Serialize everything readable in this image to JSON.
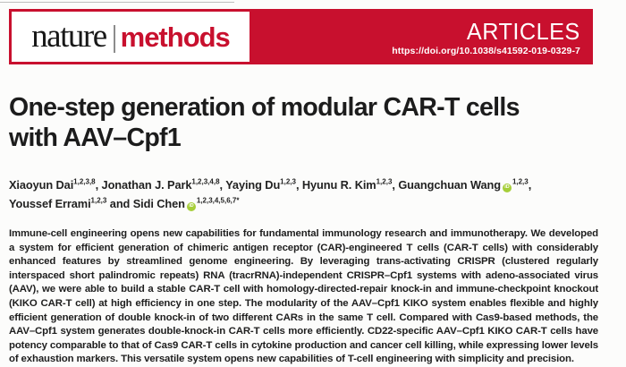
{
  "journal": {
    "name_serif": "nature",
    "name_bold": "methods"
  },
  "header": {
    "article_type": "ARTICLES",
    "doi": "https://doi.org/10.1038/s41592-019-0329-7"
  },
  "title": {
    "full": "One-step generation of modular CAR-T cells with AAV–Cpf1",
    "line1": "One-step generation of modular CAR-T cells",
    "line2": "with AAV–Cpf1"
  },
  "authors": [
    {
      "name": "Xiaoyun Dai",
      "sup": "1,2,3,8",
      "sep": ", "
    },
    {
      "name": "Jonathan J. Park",
      "sup": "1,2,3,4,8",
      "sep": ", "
    },
    {
      "name": "Yaying Du",
      "sup": "1,2,3",
      "sep": ", "
    },
    {
      "name": "Hyunu R. Kim",
      "sup": "1,2,3",
      "sep": ", "
    },
    {
      "name": "Guangchuan Wang",
      "sup": "1,2,3",
      "sep": ",",
      "orcid": true
    },
    {
      "name": "Youssef Errami",
      "sup": "1,2,3",
      "sep": " and "
    },
    {
      "name": "Sidi Chen",
      "sup": "1,2,3,4,5,6,7*",
      "sep": "",
      "orcid": true
    }
  ],
  "icons": {
    "orcid": "iD"
  },
  "abstract": "Immune-cell engineering opens new capabilities for fundamental immunology research and immunotherapy. We developed a system for efficient generation of chimeric antigen receptor (CAR)-engineered T cells (CAR-T cells) with considerably enhanced features by streamlined genome engineering. By leveraging trans-activating CRISPR (clustered regularly interspaced short palindromic repeats) RNA (tracrRNA)-independent CRISPR–Cpf1 systems with adeno-associated virus (AAV), we were able to build a stable CAR-T cell with homology-directed-repair knock-in and immune-checkpoint knockout (KIKO CAR-T cell) at high efficiency in one step. The modularity of the AAV–Cpf1 KIKO system enables flexible and highly efficient generation of double knock-in of two different CARs in the same T cell. Compared with Cas9-based methods, the AAV–Cpf1 system generates double-knock-in CAR-T cells more efficiently. CD22-specific AAV–Cpf1 KIKO CAR-T cells have potency comparable to that of Cas9 CAR-T cells in cytokine production and cancer cell killing, while expressing lower levels of exhaustion markers. This versatile system opens new capabilities of T-cell engineering with simplicity and precision.",
  "colors": {
    "brand_red": "#c8102e",
    "orcid_green": "#a6ce39"
  }
}
